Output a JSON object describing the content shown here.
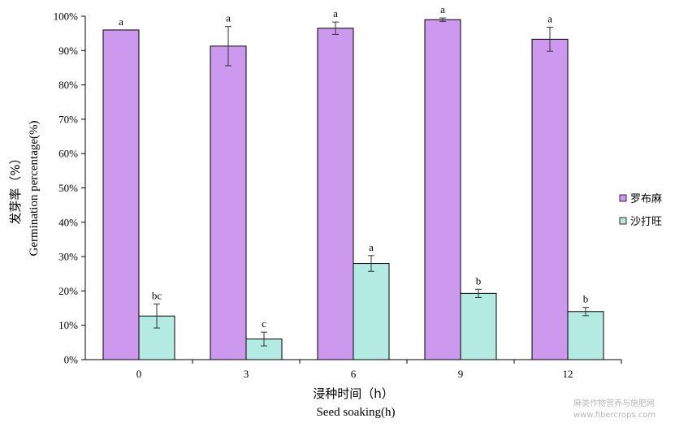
{
  "chart_data": {
    "type": "bar",
    "categories": [
      "0",
      "3",
      "6",
      "9",
      "12"
    ],
    "ylim": [
      0,
      100
    ],
    "yticks": [
      "0%",
      "10%",
      "20%",
      "30%",
      "40%",
      "50%",
      "60%",
      "70%",
      "80%",
      "90%",
      "100%"
    ],
    "ylabel_cn": "发芽率（%）",
    "ylabel_en": "Germination percentage(%)",
    "xlabel_cn": "浸种时间（h）",
    "xlabel_en": "Seed soaking(h)",
    "legend_position": "right",
    "series": [
      {
        "name": "罗布麻",
        "color": "#cc99ee",
        "values": [
          96,
          91.3,
          96.5,
          99,
          93.3
        ],
        "errors": [
          0,
          5.7,
          1.8,
          0.5,
          3.5
        ],
        "letters": [
          "a",
          "a",
          "a",
          "a",
          "a"
        ]
      },
      {
        "name": "沙打旺",
        "color": "#b3ebe3",
        "values": [
          12.7,
          6,
          28,
          19.3,
          14
        ],
        "errors": [
          3.5,
          2,
          2.3,
          1.2,
          1.2
        ],
        "letters": [
          "bc",
          "c",
          "a",
          "b",
          "b"
        ]
      }
    ]
  },
  "watermark": {
    "line1": "麻类作物营养与施肥网",
    "line2": "www.fibercrops.com"
  }
}
